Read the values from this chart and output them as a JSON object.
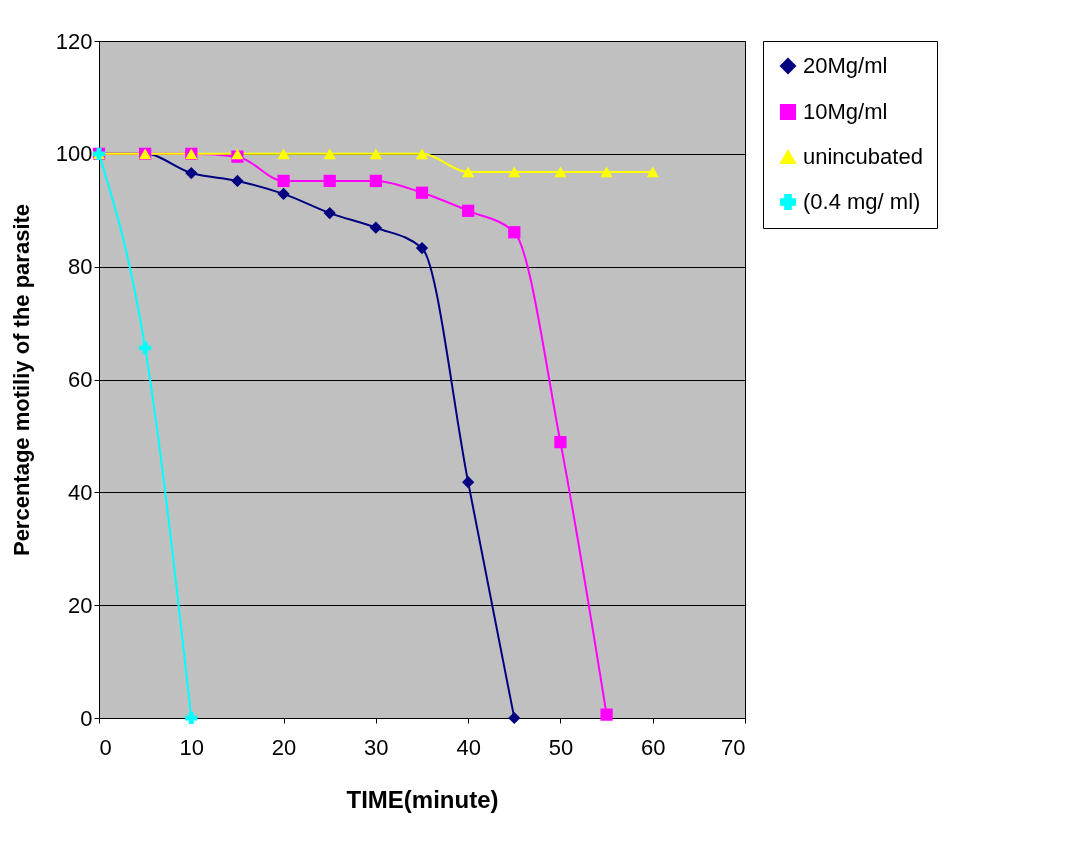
{
  "chart_data": {
    "type": "line",
    "xlabel": "TIME(minute)",
    "ylabel": "Percentage motiliy of the parasite",
    "x": [
      0,
      5,
      10,
      15,
      20,
      25,
      30,
      35,
      40,
      45,
      50,
      55,
      60
    ],
    "series": [
      {
        "name": "20Mg/ml",
        "color": "#000080",
        "marker": "diamond",
        "values": [
          100,
          100,
          96.6,
          95.2,
          92.9,
          89.5,
          86.9,
          83.3,
          41.8,
          0,
          null,
          null,
          null
        ]
      },
      {
        "name": "10Mg/ml",
        "color": "#ff00ff",
        "marker": "square",
        "values": [
          100,
          100,
          100,
          99.5,
          95.2,
          95.2,
          95.2,
          93.1,
          89.9,
          86.1,
          48.9,
          0.6,
          null
        ]
      },
      {
        "name": "unincubated",
        "color": "#ffff00",
        "marker": "triangle",
        "values": [
          100,
          100,
          100,
          100,
          100,
          100,
          100,
          100,
          96.8,
          96.8,
          96.8,
          96.8,
          96.8
        ]
      },
      {
        "name": "(0.4 mg/ ml)",
        "color": "#00ffff",
        "marker": "cross",
        "values": [
          100,
          65.6,
          0,
          null,
          null,
          null,
          null,
          null,
          null,
          null,
          null,
          null,
          null
        ]
      }
    ],
    "xlim": [
      0,
      70
    ],
    "xticks": [
      0,
      10,
      20,
      30,
      40,
      50,
      60,
      70
    ],
    "ylim": [
      0,
      120
    ],
    "yticks": [
      0,
      20,
      40,
      60,
      80,
      100,
      120
    ],
    "grid": "y",
    "legend": "right",
    "line_style": "solid"
  }
}
